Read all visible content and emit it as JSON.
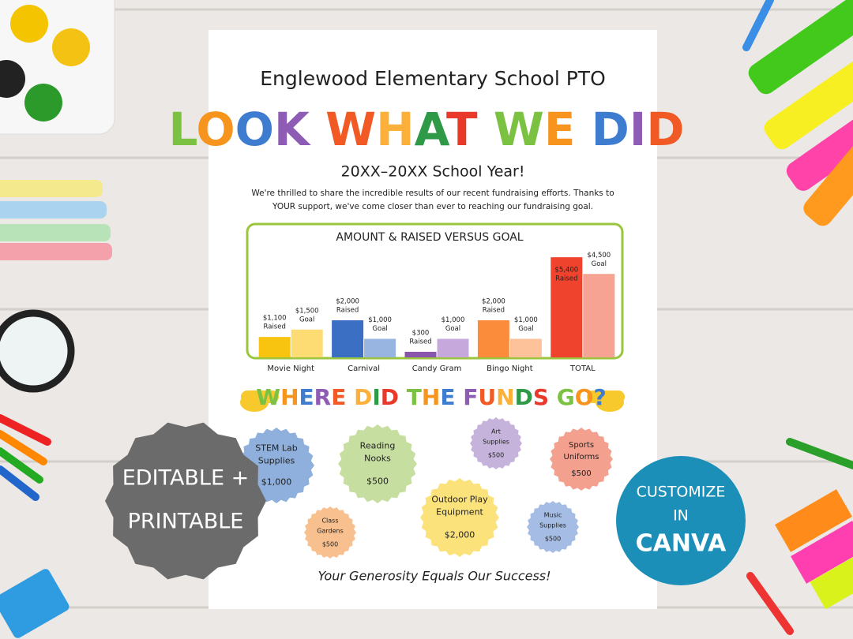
{
  "flyer": {
    "school": "Englewood Elementary School PTO",
    "headline": "LOOK WHAT WE DID",
    "year": "20XX–20XX School Year!",
    "intro_lines": [
      "We're thrilled to share the incredible results of our recent fundraising efforts. Thanks to",
      "YOUR support, we've come closer than ever to reaching our fundraising goal."
    ],
    "funds_heading": "WHERE DID THE FUNDS GO?",
    "funds": [
      {
        "label_lines": [
          "STEM Lab",
          "Supplies"
        ],
        "amount": "$1,000"
      },
      {
        "label_lines": [
          "Reading",
          "Nooks"
        ],
        "amount": "$500"
      },
      {
        "label_lines": [
          "Art",
          "Supplies"
        ],
        "amount": "$500"
      },
      {
        "label_lines": [
          "Sports",
          "Uniforms"
        ],
        "amount": "$500"
      },
      {
        "label_lines": [
          "Class",
          "Gardens"
        ],
        "amount": "$500"
      },
      {
        "label_lines": [
          "Outdoor Play",
          "Equipment"
        ],
        "amount": "$2,000"
      },
      {
        "label_lines": [
          "Music",
          "Supplies"
        ],
        "amount": "$500"
      }
    ],
    "footer": "Your Generosity Equals Our Success!"
  },
  "badges": {
    "editable": [
      "EDITABLE +",
      "PRINTABLE"
    ],
    "canva": [
      "CUSTOMIZE",
      "IN",
      "CANVA"
    ]
  },
  "chart_data": {
    "type": "bar",
    "title": "AMOUNT & RAISED VERSUS GOAL",
    "categories": [
      "Movie Night",
      "Carnival",
      "Candy Gram",
      "Bingo Night",
      "TOTAL"
    ],
    "series": [
      {
        "name": "Raised",
        "colors": [
          "#f9c40f",
          "#3a6fc4",
          "#8a55ad",
          "#fb8c3c",
          "#f0432e"
        ],
        "values": [
          1100,
          2000,
          300,
          2000,
          5400
        ],
        "value_labels": [
          "$1,100",
          "$2,000",
          "$300",
          "$2,000",
          "$5,400"
        ]
      },
      {
        "name": "Goal",
        "colors": [
          "#fddc74",
          "#97b5e0",
          "#c6a8dc",
          "#fdc29a",
          "#f7a393"
        ],
        "values": [
          1500,
          1000,
          1000,
          1000,
          4500
        ],
        "value_labels": [
          "$1,500",
          "$1,000",
          "$1,000",
          "$1,000",
          "$4,500"
        ]
      }
    ],
    "ylim": [
      0,
      6000
    ]
  }
}
